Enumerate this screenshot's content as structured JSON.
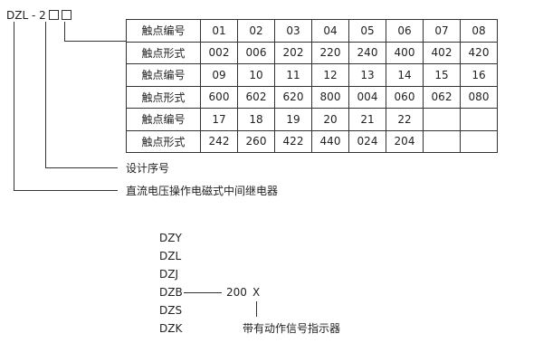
{
  "model_code": {
    "prefix": "DZL",
    "dash": "-",
    "digit": "2"
  },
  "table": {
    "rows": [
      {
        "label": "触点编号",
        "cells": [
          "01",
          "02",
          "03",
          "04",
          "05",
          "06",
          "07",
          "08"
        ]
      },
      {
        "label": "触点形式",
        "cells": [
          "002",
          "006",
          "202",
          "220",
          "240",
          "400",
          "402",
          "420"
        ]
      },
      {
        "label": "触点编号",
        "cells": [
          "09",
          "10",
          "11",
          "12",
          "13",
          "14",
          "15",
          "16"
        ]
      },
      {
        "label": "触点形式",
        "cells": [
          "600",
          "602",
          "620",
          "800",
          "004",
          "060",
          "062",
          "080"
        ]
      },
      {
        "label": "触点编号",
        "cells": [
          "17",
          "18",
          "19",
          "20",
          "21",
          "22",
          "",
          ""
        ]
      },
      {
        "label": "触点形式",
        "cells": [
          "242",
          "260",
          "422",
          "440",
          "024",
          "204",
          "",
          ""
        ]
      }
    ]
  },
  "labels": {
    "design_serial": "设计序号",
    "relay_type": "直流电压操作电磁式中间继电器"
  },
  "series_list": [
    "DZY",
    "DZL",
    "DZJ",
    "DZB",
    "DZS",
    "DZK"
  ],
  "example": {
    "number": "200",
    "suffix": "X",
    "suffix_note": "带有动作信号指示器"
  }
}
